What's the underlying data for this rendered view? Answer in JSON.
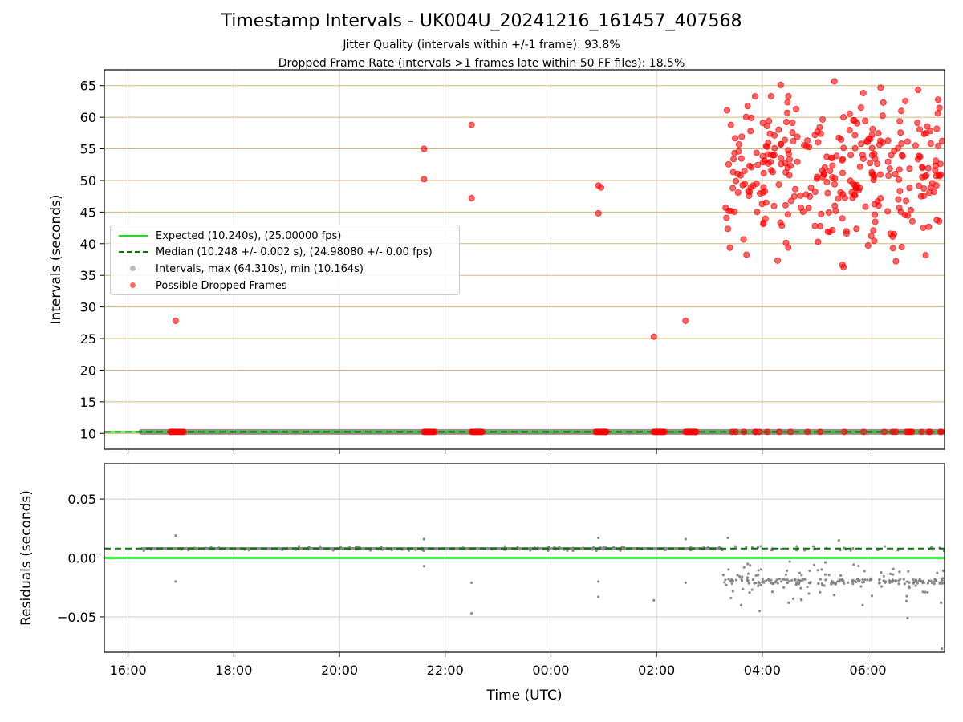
{
  "title": "Timestamp Intervals - UK004U_20241216_161457_407568",
  "subtitle_1": "Jitter Quality (intervals within +/-1 frame): 93.8%",
  "subtitle_2": "Dropped Frame Rate (intervals >1 frames late within 50 FF files): 18.5%",
  "colors": {
    "expected": "#00ee00",
    "median": "#007700",
    "intervals": "#808080",
    "dropped": "#ff0000",
    "hgrid_top": "#d2b875",
    "grid": "#cccccc"
  },
  "chart_data": [
    {
      "type": "scatter",
      "panel": "top",
      "ylabel": "Intervals (seconds)",
      "x_ticks": [
        "16:00",
        "18:00",
        "20:00",
        "22:00",
        "00:00",
        "02:00",
        "04:00",
        "06:00"
      ],
      "x_tick_hours": [
        16,
        18,
        20,
        22,
        24,
        26,
        28,
        30
      ],
      "xlim_hours": [
        15.55,
        31.45
      ],
      "ylim": [
        7.5,
        67.5
      ],
      "y_ticks": [
        10,
        15,
        20,
        25,
        30,
        35,
        40,
        45,
        50,
        55,
        60,
        65
      ],
      "grid": true,
      "legend_position": "center-left",
      "expected_value": 10.24,
      "median_value": 10.248,
      "intervals_range_hours": [
        16.25,
        31.45
      ],
      "intervals_value": 10.248,
      "dropped_clusters_at_10": [
        {
          "x_from": 16.8,
          "x_to": 17.05
        },
        {
          "x_from": 21.6,
          "x_to": 21.8
        },
        {
          "x_from": 22.5,
          "x_to": 22.7
        },
        {
          "x_from": 24.85,
          "x_to": 25.05
        },
        {
          "x_from": 25.95,
          "x_to": 26.15
        },
        {
          "x_from": 26.55,
          "x_to": 26.75
        }
      ],
      "dropped_isolated": [
        {
          "x": 16.9,
          "y": 27.8
        },
        {
          "x": 21.6,
          "y": 55.0
        },
        {
          "x": 21.6,
          "y": 50.2
        },
        {
          "x": 22.5,
          "y": 58.8
        },
        {
          "x": 22.5,
          "y": 47.2
        },
        {
          "x": 24.9,
          "y": 49.2
        },
        {
          "x": 24.95,
          "y": 48.9
        },
        {
          "x": 24.9,
          "y": 44.8
        },
        {
          "x": 25.95,
          "y": 25.3
        },
        {
          "x": 26.55,
          "y": 27.8
        }
      ],
      "dropped_dense_region": {
        "x_from": 27.3,
        "x_to": 31.45,
        "y_from": 42.0,
        "y_to": 61.0,
        "count": 320,
        "max": 64.31,
        "max_x": 30.95
      },
      "legend": [
        {
          "label": "Expected (10.240s), (25.00000 fps)",
          "kind": "solid-line",
          "color": "#00ee00"
        },
        {
          "label": "Median (10.248 +/- 0.002 s), (24.98080 +/- 0.00 fps)",
          "kind": "dashed-line",
          "color": "#007700"
        },
        {
          "label": "Intervals, max (64.310s), min (10.164s)",
          "kind": "dot",
          "color": "#808080"
        },
        {
          "label": "Possible Dropped Frames",
          "kind": "dot",
          "color": "#ff0000"
        }
      ]
    },
    {
      "type": "scatter",
      "panel": "bottom",
      "xlabel": "Time (UTC)",
      "ylabel": "Residuals (seconds)",
      "x_ticks": [
        "16:00",
        "18:00",
        "20:00",
        "22:00",
        "00:00",
        "02:00",
        "04:00",
        "06:00"
      ],
      "y_ticks": [
        "0.05",
        "0.00",
        "−0.05"
      ],
      "y_tick_values": [
        0.05,
        0.0,
        -0.05
      ],
      "ylim": [
        -0.08,
        0.08
      ],
      "expected_residual": 0.0,
      "median_residual": 0.008,
      "dense_band": {
        "x_from": 16.25,
        "x_to": 27.25,
        "y": 0.008
      },
      "scatter_region": {
        "x_from": 27.25,
        "x_to": 31.45,
        "y_center": -0.02,
        "spread": 0.012,
        "count": 260
      },
      "outliers": [
        {
          "x": 16.9,
          "y": 0.019
        },
        {
          "x": 16.9,
          "y": -0.02
        },
        {
          "x": 21.6,
          "y": 0.016
        },
        {
          "x": 21.6,
          "y": -0.007
        },
        {
          "x": 22.5,
          "y": -0.021
        },
        {
          "x": 22.5,
          "y": -0.047
        },
        {
          "x": 24.9,
          "y": 0.017
        },
        {
          "x": 24.9,
          "y": -0.02
        },
        {
          "x": 24.9,
          "y": -0.033
        },
        {
          "x": 25.95,
          "y": -0.036
        },
        {
          "x": 26.55,
          "y": 0.016
        },
        {
          "x": 26.55,
          "y": -0.021
        },
        {
          "x": 27.35,
          "y": 0.017
        },
        {
          "x": 27.6,
          "y": -0.04
        },
        {
          "x": 27.95,
          "y": -0.045
        },
        {
          "x": 29.45,
          "y": 0.015
        },
        {
          "x": 30.75,
          "y": -0.051
        },
        {
          "x": 31.4,
          "y": -0.077
        },
        {
          "x": 29.9,
          "y": -0.04
        },
        {
          "x": 28.5,
          "y": -0.038
        }
      ]
    }
  ]
}
